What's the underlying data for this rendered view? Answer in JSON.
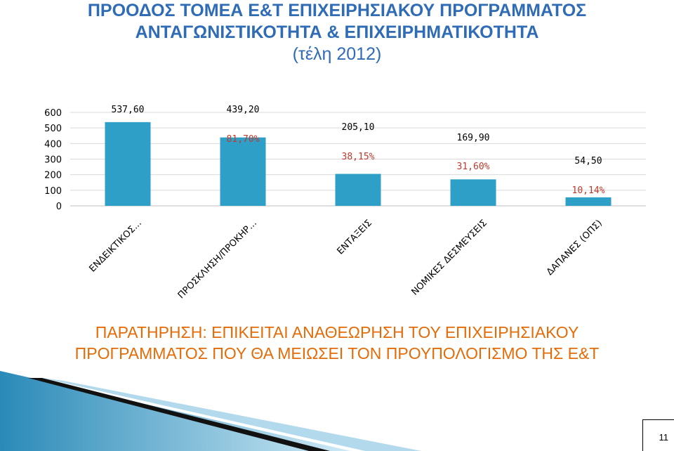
{
  "slide": {
    "title_line1": "ΠΡΟΟΔΟΣ ΤΟΜΕΑ Ε&Τ ΕΠΙΧΕΙΡΗΣΙΑΚΟΥ ΠΡΟΓΡΑΜΜΑΤΟΣ",
    "title_line2": "ΑΝΤΑΓΩΝΙΣΤΙΚΟΤΗΤΑ & ΕΠΙΧΕΙΡΗΜΑΤΙΚΟΤΗΤΑ",
    "title_line3": "(τέλη 2012)",
    "note_line1": "ΠΑΡΑΤΗΡΗΣΗ: ΕΠΙΚΕΙΤΑΙ ΑΝΑΘΕΩΡΗΣΗ ΤΟΥ ΕΠΙΧΕΙΡΗΣΙΑΚΟΥ",
    "note_line2": "ΠΡΟΓΡΑΜΜΑΤΟΣ ΠΟΥ ΘΑ ΜΕΙΩΣΕΙ ΤΟΝ ΠΡΟΥΠΟΛΟΓΙΣΜΟ ΤΗΣ Ε&Τ",
    "page_number": "11"
  },
  "colors": {
    "title": "#2f6cb5",
    "bar": "#2e9fc7",
    "percent": "#c0392b",
    "note": "#e36c09"
  },
  "chart_data": {
    "type": "bar",
    "categories": [
      "ΕΝΔΕΙΚΤΙΚΟΣ...",
      "ΠΡΟΣΚΛΗΣΗ/ΠΡΟΚΗΡ...",
      "ΕΝΤΑΞΕΙΣ",
      "ΝΟΜΙΚΕΣ ΔΕΣΜΕΥΣΕΙΣ",
      "ΔΑΠΑΝΕΣ (ΟΠΣ)"
    ],
    "values": [
      537.6,
      439.2,
      205.1,
      169.9,
      54.5
    ],
    "value_labels": [
      "537,60",
      "439,20",
      "205,10",
      "169,90",
      "54,50"
    ],
    "percent_labels": [
      "",
      "81,70%",
      "38,15%",
      "31,60%",
      "10,14%"
    ],
    "yticks": [
      "0",
      "100",
      "200",
      "300",
      "400",
      "500",
      "600"
    ],
    "ylim": [
      0,
      600
    ],
    "grid": true
  }
}
